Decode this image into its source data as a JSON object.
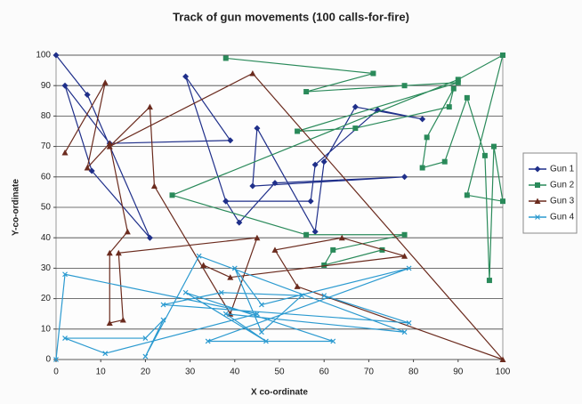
{
  "chart_data": {
    "type": "line",
    "title": "Track of gun movements (100 calls-for-fire)",
    "x_label": "X co-ordinate",
    "y_label": "Y-co-ordinate",
    "xlim": [
      0,
      100
    ],
    "ylim": [
      0,
      100
    ],
    "xticks": [
      0,
      10,
      20,
      30,
      40,
      50,
      60,
      70,
      80,
      90,
      100
    ],
    "yticks": [
      0,
      10,
      20,
      30,
      40,
      50,
      60,
      70,
      80,
      90,
      100
    ],
    "grid": true,
    "legend": "right",
    "series": [
      {
        "name": "Gun 1",
        "color": "#1f2f8a",
        "marker": "diamond",
        "x": [
          0,
          7,
          21,
          8,
          2,
          12,
          39,
          29,
          38,
          57,
          58,
          72,
          82,
          67,
          60,
          58,
          45,
          44,
          78,
          49,
          41,
          38
        ],
        "values": [
          100,
          87,
          40,
          62,
          90,
          71,
          72,
          93,
          52,
          52,
          64,
          82,
          79,
          83,
          65,
          42,
          76,
          57,
          60,
          58,
          45,
          52
        ]
      },
      {
        "name": "Gun 2",
        "color": "#2a8a5a",
        "marker": "square",
        "x": [
          38,
          71,
          56,
          78,
          90,
          54,
          67,
          88,
          89,
          83,
          82,
          87,
          92,
          96,
          97,
          98,
          100,
          92,
          100,
          90,
          26,
          56,
          78,
          62,
          60,
          73
        ],
        "values": [
          99,
          94,
          88,
          90,
          91,
          75,
          76,
          83,
          89,
          73,
          63,
          65,
          86,
          67,
          26,
          70,
          52,
          54,
          100,
          92,
          54,
          41,
          41,
          36,
          31,
          36
        ]
      },
      {
        "name": "Gun 3",
        "color": "#6b2b1e",
        "marker": "triangle",
        "x": [
          2,
          11,
          7,
          12,
          16,
          12,
          12,
          15,
          14,
          45,
          39,
          22,
          21,
          12,
          44,
          100,
          54,
          49,
          64,
          78,
          39,
          33
        ],
        "values": [
          68,
          91,
          63,
          71,
          42,
          35,
          12,
          13,
          35,
          40,
          15,
          57,
          83,
          70,
          94,
          0,
          24,
          36,
          40,
          34,
          27,
          31
        ]
      },
      {
        "name": "Gun 4",
        "color": "#2b9ad0",
        "marker": "x",
        "x": [
          0,
          2,
          45,
          11,
          2,
          20,
          24,
          20,
          32,
          78,
          38,
          47,
          29,
          62,
          34,
          79,
          46,
          40,
          46,
          55,
          37,
          24,
          79,
          60
        ],
        "values": [
          0,
          28,
          15,
          2,
          7,
          7,
          13,
          1,
          34,
          9,
          15,
          6,
          22,
          6,
          6,
          30,
          18,
          30,
          9,
          21,
          22,
          18,
          12,
          21
        ]
      }
    ]
  }
}
